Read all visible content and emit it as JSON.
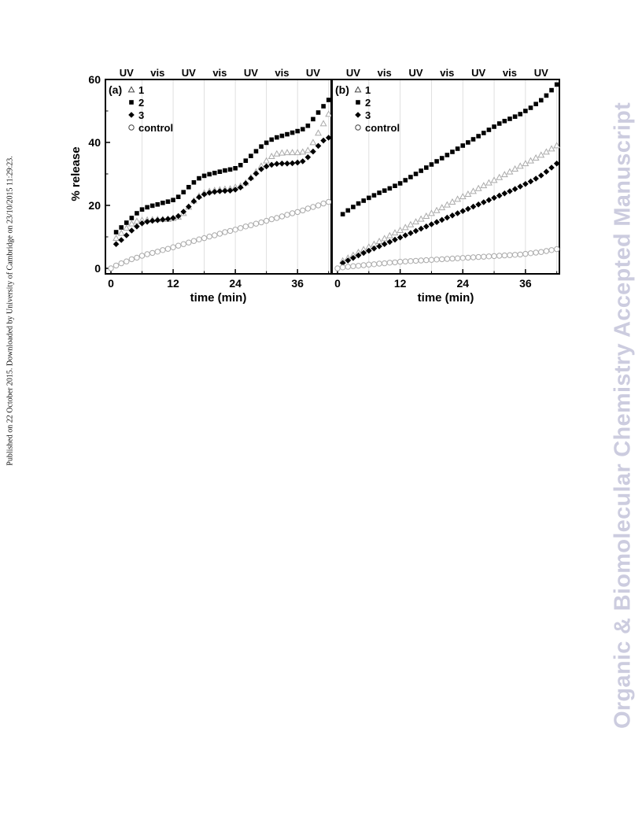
{
  "side_note": "Published on 22 October 2015. Downloaded by University of Cambridge on 23/10/2015 11:29:23.",
  "watermark": "Organic & Biomolecular Chemistry Accepted Manuscript",
  "chart_data": [
    {
      "panel_label": "(a)",
      "type": "scatter",
      "xlabel": "time (min)",
      "ylabel": "% release",
      "xlim": [
        0,
        42.5
      ],
      "ylim": [
        0,
        60
      ],
      "xticks": [
        "0",
        "12",
        "24",
        "36"
      ],
      "yticks": [
        "0",
        "20",
        "40",
        "60"
      ],
      "grid": "vertical lines at 6 min intervals",
      "top_labels": [
        "UV",
        "vis",
        "UV",
        "vis",
        "UV",
        "vis",
        "UV"
      ],
      "legend_position": "top-left",
      "series": [
        {
          "name": "1",
          "marker": "open-triangle",
          "color": "#aaaaaa",
          "x": [
            1,
            2,
            3,
            4,
            5,
            6,
            7,
            8,
            9,
            10,
            11,
            12,
            13,
            14,
            15,
            16,
            17,
            18,
            19,
            20,
            21,
            22,
            23,
            24,
            25,
            26,
            27,
            28,
            29,
            30,
            31,
            32,
            33,
            34,
            35,
            36,
            37,
            38,
            39,
            40,
            41,
            42
          ],
          "y": [
            9.6,
            11.2,
            12.8,
            14.2,
            15.0,
            15.3,
            15.4,
            15.5,
            15.6,
            15.6,
            15.6,
            15.9,
            16.3,
            17.5,
            19.5,
            21.5,
            23.0,
            24.0,
            24.5,
            24.8,
            25.0,
            25.2,
            25.3,
            25.8,
            26.2,
            27.2,
            28.9,
            30.7,
            32.5,
            34.2,
            35.6,
            36.4,
            36.7,
            36.8,
            36.8,
            36.8,
            37.0,
            37.5,
            40.0,
            43.0,
            46.0,
            49.0
          ]
        },
        {
          "name": "2",
          "marker": "filled-square",
          "color": "#000000",
          "x": [
            1,
            2,
            3,
            4,
            5,
            6,
            7,
            8,
            9,
            10,
            11,
            12,
            13,
            14,
            15,
            16,
            17,
            18,
            19,
            20,
            21,
            22,
            23,
            24,
            25,
            26,
            27,
            28,
            29,
            30,
            31,
            32,
            33,
            34,
            35,
            36,
            37,
            38,
            39,
            40,
            41,
            42
          ],
          "y": [
            11.5,
            13.0,
            14.5,
            16.0,
            17.5,
            18.7,
            19.4,
            19.9,
            20.3,
            20.8,
            21.2,
            21.7,
            22.7,
            24.2,
            25.8,
            27.3,
            28.6,
            29.4,
            29.9,
            30.3,
            30.7,
            31.1,
            31.4,
            31.8,
            32.8,
            34.2,
            35.7,
            37.2,
            38.7,
            39.9,
            40.9,
            41.6,
            42.1,
            42.6,
            43.1,
            43.6,
            44.2,
            45.3,
            47.4,
            49.5,
            51.5,
            53.5
          ]
        },
        {
          "name": "3",
          "marker": "filled-diamond",
          "color": "#000000",
          "x": [
            1,
            2,
            3,
            4,
            5,
            6,
            7,
            8,
            9,
            10,
            11,
            12,
            13,
            14,
            15,
            16,
            17,
            18,
            19,
            20,
            21,
            22,
            23,
            24,
            25,
            26,
            27,
            28,
            29,
            30,
            31,
            32,
            33,
            34,
            35,
            36,
            37,
            38,
            39,
            40,
            41,
            42
          ],
          "y": [
            7.7,
            9.0,
            10.5,
            12.0,
            13.3,
            14.3,
            14.8,
            15.1,
            15.3,
            15.5,
            15.7,
            16.0,
            16.6,
            18.0,
            19.6,
            21.3,
            22.6,
            23.5,
            24.0,
            24.3,
            24.5,
            24.6,
            24.7,
            25.0,
            25.7,
            27.0,
            28.6,
            30.1,
            31.5,
            32.4,
            32.9,
            33.2,
            33.3,
            33.3,
            33.4,
            33.6,
            34.0,
            35.3,
            37.1,
            38.9,
            40.6,
            41.5
          ]
        },
        {
          "name": "control",
          "marker": "open-circle",
          "color": "#aaaaaa",
          "x": [
            0,
            1,
            2,
            3,
            4,
            5,
            6,
            7,
            8,
            9,
            10,
            11,
            12,
            13,
            14,
            15,
            16,
            17,
            18,
            19,
            20,
            21,
            22,
            23,
            24,
            25,
            26,
            27,
            28,
            29,
            30,
            31,
            32,
            33,
            34,
            35,
            36,
            37,
            38,
            39,
            40,
            41,
            42
          ],
          "y": [
            0,
            0.9,
            1.6,
            2.2,
            2.9,
            3.4,
            4.0,
            4.5,
            4.9,
            5.3,
            5.8,
            6.2,
            6.7,
            7.2,
            7.7,
            8.2,
            8.7,
            9.2,
            9.6,
            10.1,
            10.5,
            11.0,
            11.5,
            11.9,
            12.3,
            12.8,
            13.3,
            13.7,
            14.2,
            14.6,
            15.1,
            15.6,
            16.0,
            16.5,
            17.0,
            17.5,
            17.9,
            18.4,
            19.0,
            19.5,
            20.0,
            20.6,
            21.1
          ]
        }
      ]
    },
    {
      "panel_label": "(b)",
      "type": "scatter",
      "xlabel": "time (min)",
      "xlim": [
        0,
        42.5
      ],
      "ylim": [
        0,
        60
      ],
      "xticks": [
        "0",
        "12",
        "24",
        "36"
      ],
      "grid": "vertical lines at 6 min intervals",
      "top_labels": [
        "UV",
        "vis",
        "UV",
        "vis",
        "UV",
        "vis",
        "UV"
      ],
      "legend_position": "top-left",
      "series": [
        {
          "name": "1",
          "marker": "open-triangle",
          "color": "#aaaaaa",
          "x": [
            1,
            2,
            3,
            4,
            5,
            6,
            7,
            8,
            9,
            10,
            11,
            12,
            13,
            14,
            15,
            16,
            17,
            18,
            19,
            20,
            21,
            22,
            23,
            24,
            25,
            26,
            27,
            28,
            29,
            30,
            31,
            32,
            33,
            34,
            35,
            36,
            37,
            38,
            39,
            40,
            41,
            42
          ],
          "y": [
            2.4,
            3.3,
            4.2,
            5.1,
            6.0,
            6.8,
            7.7,
            8.6,
            9.5,
            10.4,
            11.3,
            12.1,
            13.0,
            13.9,
            14.8,
            15.7,
            16.6,
            17.5,
            18.4,
            19.3,
            20.2,
            21.1,
            22.0,
            22.8,
            23.6,
            24.5,
            25.4,
            26.3,
            27.2,
            28.0,
            28.9,
            29.8,
            30.7,
            31.6,
            32.5,
            33.3,
            34.2,
            35.1,
            36.0,
            37.0,
            38.0,
            39.0
          ]
        },
        {
          "name": "2",
          "marker": "filled-square",
          "color": "#000000",
          "x": [
            1,
            2,
            3,
            4,
            5,
            6,
            7,
            8,
            9,
            10,
            11,
            12,
            13,
            14,
            15,
            16,
            17,
            18,
            19,
            20,
            21,
            22,
            23,
            24,
            25,
            26,
            27,
            28,
            29,
            30,
            31,
            32,
            33,
            34,
            35,
            36,
            37,
            38,
            39,
            40,
            41,
            42
          ],
          "y": [
            17.2,
            18.4,
            19.5,
            20.6,
            21.5,
            22.4,
            23.2,
            24.0,
            24.7,
            25.4,
            26.2,
            27.0,
            28.0,
            29.0,
            30.0,
            31.0,
            32.0,
            33.0,
            34.0,
            35.0,
            36.0,
            37.0,
            38.0,
            39.0,
            40.0,
            41.0,
            42.0,
            43.0,
            44.0,
            45.0,
            46.0,
            46.8,
            47.5,
            48.2,
            49.0,
            50.0,
            51.0,
            52.2,
            53.4,
            54.9,
            56.6,
            58.4
          ]
        },
        {
          "name": "3",
          "marker": "filled-diamond",
          "color": "#000000",
          "x": [
            1,
            2,
            3,
            4,
            5,
            6,
            7,
            8,
            9,
            10,
            11,
            12,
            13,
            14,
            15,
            16,
            17,
            18,
            19,
            20,
            21,
            22,
            23,
            24,
            25,
            26,
            27,
            28,
            29,
            30,
            31,
            32,
            33,
            34,
            35,
            36,
            37,
            38,
            39,
            40,
            41,
            42
          ],
          "y": [
            1.7,
            2.5,
            3.3,
            4.1,
            4.9,
            5.6,
            6.3,
            7.0,
            7.7,
            8.4,
            9.1,
            9.8,
            10.5,
            11.2,
            11.9,
            12.6,
            13.3,
            14.0,
            14.7,
            15.4,
            16.1,
            16.8,
            17.5,
            18.2,
            18.9,
            19.6,
            20.3,
            21.0,
            21.7,
            22.4,
            23.1,
            23.8,
            24.5,
            25.2,
            26.0,
            26.8,
            27.6,
            28.5,
            29.5,
            30.7,
            32.0,
            33.3
          ]
        },
        {
          "name": "control",
          "marker": "open-circle",
          "color": "#aaaaaa",
          "x": [
            0,
            1,
            2,
            3,
            4,
            5,
            6,
            7,
            8,
            9,
            10,
            11,
            12,
            13,
            14,
            15,
            16,
            17,
            18,
            19,
            20,
            21,
            22,
            23,
            24,
            25,
            26,
            27,
            28,
            29,
            30,
            31,
            32,
            33,
            34,
            35,
            36,
            37,
            38,
            39,
            40,
            41,
            42
          ],
          "y": [
            0,
            0.3,
            0.5,
            0.7,
            0.8,
            1.0,
            1.2,
            1.3,
            1.5,
            1.6,
            1.8,
            1.9,
            2.1,
            2.2,
            2.3,
            2.4,
            2.5,
            2.6,
            2.7,
            2.8,
            2.9,
            3.0,
            3.1,
            3.2,
            3.3,
            3.4,
            3.5,
            3.6,
            3.7,
            3.8,
            3.9,
            4.0,
            4.1,
            4.2,
            4.3,
            4.4,
            4.6,
            4.8,
            5.0,
            5.2,
            5.5,
            5.8,
            6.1
          ]
        }
      ]
    }
  ]
}
